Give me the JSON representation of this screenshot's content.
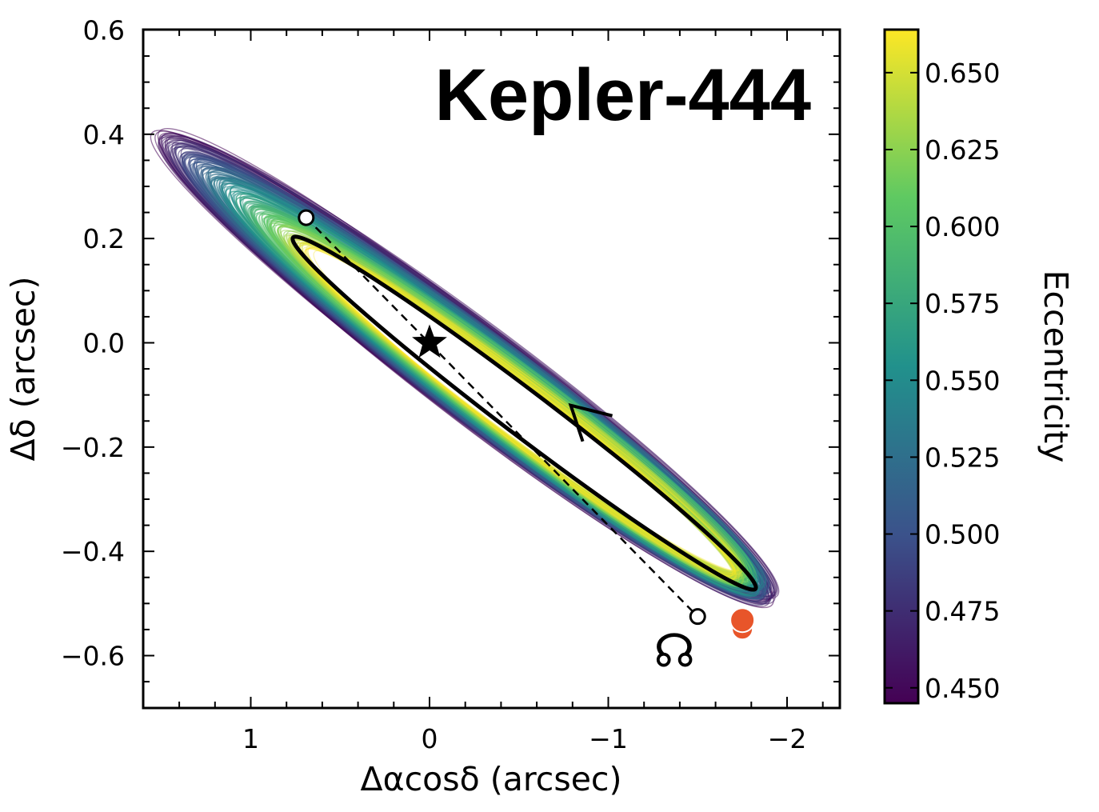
{
  "chart_data": {
    "type": "orbit-plot",
    "title": "Kepler-444",
    "xlabel": "Δαcosδ (arcsec)",
    "ylabel": "Δδ (arcsec)",
    "xlim": [
      1.6,
      -2.3
    ],
    "ylim": [
      -0.7,
      0.6
    ],
    "x_inverted": true,
    "xticks": [
      1,
      0,
      -1,
      -2
    ],
    "xtick_labels": [
      "1",
      "0",
      "−1",
      "−2"
    ],
    "yticks": [
      0.6,
      0.4,
      0.2,
      0.0,
      -0.2,
      -0.4,
      -0.6
    ],
    "ytick_labels": [
      "0.6",
      "0.4",
      "0.2",
      "0.0",
      "−0.2",
      "−0.4",
      "−0.6"
    ],
    "grid": false,
    "colorbar": {
      "label": "Eccentricity",
      "range": [
        0.445,
        0.664
      ],
      "colormap": [
        "#440154",
        "#3b528b",
        "#21918c",
        "#5ec962",
        "#fde725"
      ],
      "ticks": [
        0.45,
        0.475,
        0.5,
        0.525,
        0.55,
        0.575,
        0.6,
        0.625,
        0.65
      ],
      "tick_labels": [
        "0.450",
        "0.475",
        "0.500",
        "0.525",
        "0.550",
        "0.575",
        "0.600",
        "0.625",
        "0.650"
      ]
    },
    "star": {
      "x": 0.0,
      "y": 0.0
    },
    "node_markers": [
      {
        "x": 0.69,
        "y": 0.24
      },
      {
        "x": -1.5,
        "y": -0.525
      }
    ],
    "line_of_nodes": {
      "x": [
        0.69,
        -1.5
      ],
      "y": [
        0.24,
        -0.525
      ]
    },
    "companion": {
      "x": -1.75,
      "y": -0.532,
      "color": "#e8552a"
    },
    "ascending_node_symbol": {
      "text": "☊",
      "x": -1.37,
      "y": -0.6
    },
    "best_fit_orbit": {
      "center": {
        "x": -0.53,
        "y": -0.135
      },
      "a": 1.27,
      "b": 0.105,
      "angle_deg": -19.3
    },
    "direction_arrow": {
      "x": -0.79,
      "y": -0.12
    },
    "sampled_orbits": {
      "count": 240,
      "e_range": [
        0.445,
        0.664
      ]
    }
  }
}
